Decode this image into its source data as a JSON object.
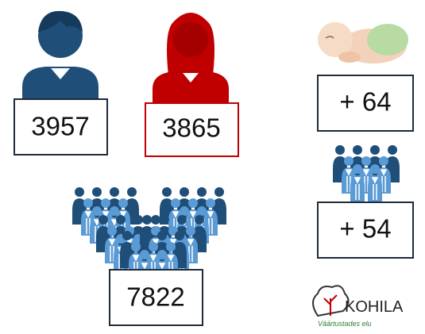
{
  "stats": {
    "men": "3957",
    "women": "3865",
    "births": "+ 64",
    "migration": "+ 54",
    "total": "7822"
  },
  "logo": {
    "name": "KOHILA",
    "tagline": "Väärtustades elu"
  }
}
